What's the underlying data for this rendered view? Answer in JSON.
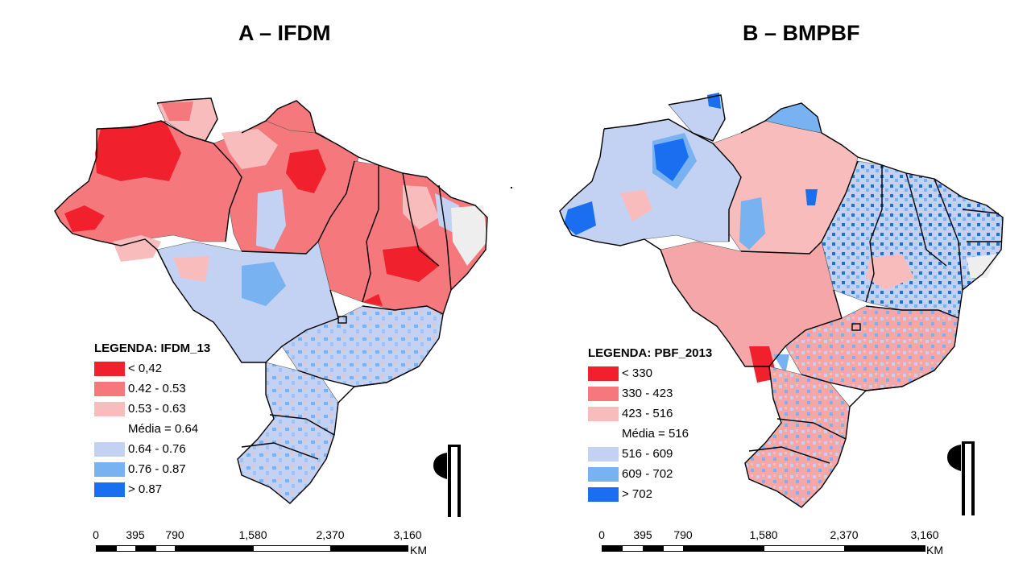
{
  "maps": [
    {
      "id": "a",
      "title": "A – IFDM",
      "legend": {
        "title": "LEGENDA: IFDM_13",
        "items": [
          {
            "label": "< 0,42",
            "color": "#f0202c"
          },
          {
            "label": "0.42 - 0.53",
            "color": "#f4787c"
          },
          {
            "label": "0.53 - 0.63",
            "color": "#f9bcbc"
          },
          {
            "label": "Média = 0.64",
            "color": ""
          },
          {
            "label": "0.64 - 0.76",
            "color": "#c3d2f3"
          },
          {
            "label": "0.76 - 0.87",
            "color": "#78b2f0"
          },
          {
            "label": "> 0.87",
            "color": "#1a6ff0"
          }
        ]
      },
      "scale": {
        "ticks": [
          "0",
          "395",
          "790",
          "1,580",
          "2,370",
          "3,160"
        ],
        "unit": "KM"
      }
    },
    {
      "id": "b",
      "title": "B – BMPBF",
      "legend": {
        "title": "LEGENDA: PBF_2013",
        "items": [
          {
            "label": "< 330",
            "color": "#f0202c"
          },
          {
            "label": "330 - 423",
            "color": "#f4787c"
          },
          {
            "label": "423 - 516",
            "color": "#f9bcbc"
          },
          {
            "label": "Média = 516",
            "color": ""
          },
          {
            "label": "516 - 609",
            "color": "#c3d2f3"
          },
          {
            "label": "609 - 702",
            "color": "#78b2f0"
          },
          {
            "label": "> 702",
            "color": "#1a6ff0"
          }
        ]
      },
      "scale": {
        "ticks": [
          "0",
          "395",
          "790",
          "1,580",
          "2,370",
          "3,160"
        ],
        "unit": "KM"
      }
    }
  ]
}
